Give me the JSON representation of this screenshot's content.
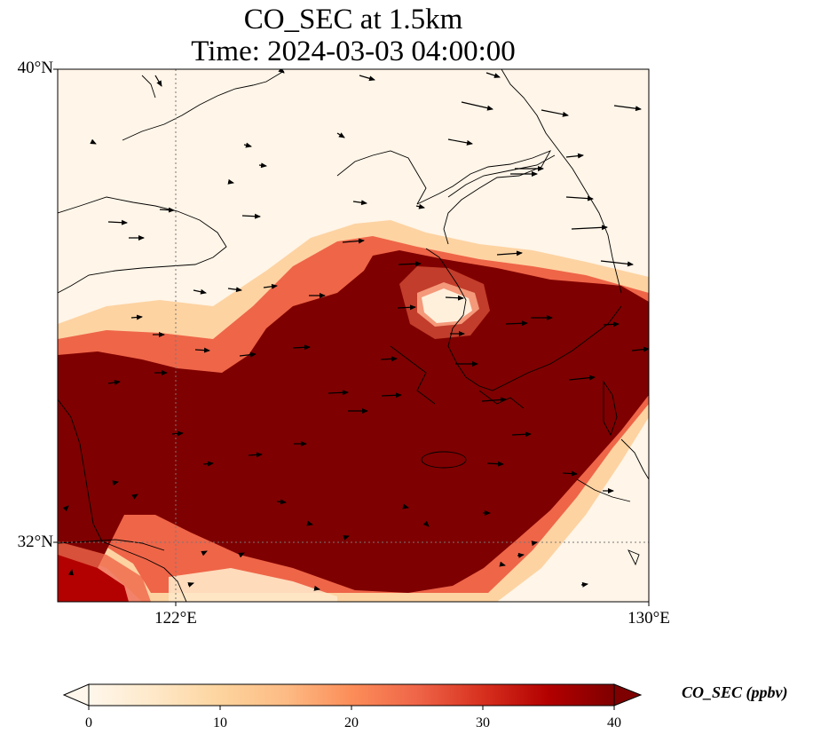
{
  "title": {
    "line1": "CO_SEC at 1.5km",
    "line2": "Time: 2024-03-03 04:00:00"
  },
  "map": {
    "lat_labels": [
      "40°N",
      "32°N"
    ],
    "lon_labels": [
      "122°E",
      "130°E"
    ],
    "lon_range": [
      120,
      130
    ],
    "lat_range": [
      31,
      40
    ],
    "gridlines": {
      "lons": [
        122,
        130
      ],
      "lats": [
        32,
        40
      ],
      "style": "dotted"
    }
  },
  "colorbar": {
    "label": "CO_SEC (ppbv)",
    "ticks": [
      "0",
      "10",
      "20",
      "30",
      "40"
    ],
    "min": 0,
    "max": 40,
    "extend": "both",
    "colormap": "OrRd",
    "colors": [
      "#fff7ec",
      "#fee8c8",
      "#fdd49e",
      "#fdbb84",
      "#fc8d59",
      "#ef6548",
      "#d7301f",
      "#b30000",
      "#7f0000"
    ]
  },
  "chart_data": {
    "type": "heatmap",
    "title": "CO_SEC at 1.5km\nTime: 2024-03-03 04:00:00",
    "xlabel": "",
    "ylabel": "",
    "xlim": [
      120,
      130
    ],
    "ylim": [
      31,
      40
    ],
    "value_range": [
      0,
      40
    ],
    "units": "ppbv",
    "overlay": "wind vectors (mostly eastward)"
  }
}
